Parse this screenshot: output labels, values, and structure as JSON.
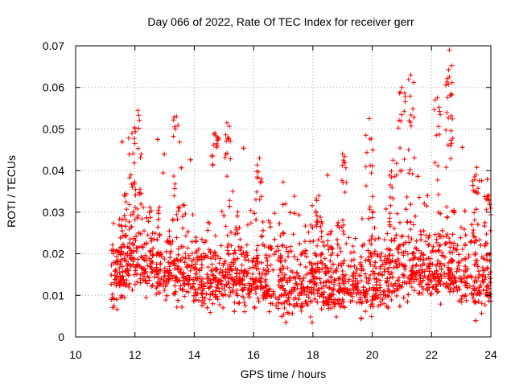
{
  "chart_data": {
    "type": "scatter",
    "title": "Day 066 of 2022, Rate Of TEC Index for receiver gerr",
    "xlabel": "GPS time / hours",
    "ylabel": "ROTI / TECUs",
    "xlim": [
      10,
      24
    ],
    "ylim": [
      0,
      0.07
    ],
    "x_ticks": [
      10,
      12,
      14,
      16,
      18,
      20,
      22,
      24
    ],
    "x_tick_labels": [
      "10",
      "12",
      "14",
      "16",
      "18",
      "20",
      "22",
      "24"
    ],
    "y_ticks": [
      0,
      0.01,
      0.02,
      0.03,
      0.04,
      0.05,
      0.06,
      0.07
    ],
    "y_tick_labels": [
      "0",
      "0.01",
      "0.02",
      "0.03",
      "0.04",
      "0.05",
      "0.06",
      "0.07"
    ],
    "grid": true,
    "marker": "+",
    "series": [
      {
        "name": "ROTI",
        "color": "#ff0000",
        "x_range": [
          11.2,
          24.0
        ],
        "baseline": [
          [
            11.2,
            0.012
          ],
          [
            11.5,
            0.016
          ],
          [
            12.0,
            0.018
          ],
          [
            12.5,
            0.017
          ],
          [
            13.0,
            0.016
          ],
          [
            13.5,
            0.016
          ],
          [
            14.0,
            0.014
          ],
          [
            14.5,
            0.014
          ],
          [
            15.0,
            0.015
          ],
          [
            15.5,
            0.014
          ],
          [
            16.0,
            0.014
          ],
          [
            16.5,
            0.013
          ],
          [
            17.0,
            0.012
          ],
          [
            17.5,
            0.012
          ],
          [
            18.0,
            0.012
          ],
          [
            18.5,
            0.012
          ],
          [
            19.0,
            0.012
          ],
          [
            19.5,
            0.012
          ],
          [
            20.0,
            0.012
          ],
          [
            20.5,
            0.013
          ],
          [
            21.0,
            0.015
          ],
          [
            21.5,
            0.016
          ],
          [
            22.0,
            0.016
          ],
          [
            22.5,
            0.016
          ],
          [
            23.0,
            0.014
          ],
          [
            23.5,
            0.013
          ],
          [
            24.0,
            0.013
          ]
        ],
        "peaks": [
          {
            "x": 11.9,
            "y": 0.049
          },
          {
            "x": 12.1,
            "y": 0.0545
          },
          {
            "x": 13.4,
            "y": 0.053
          },
          {
            "x": 14.7,
            "y": 0.049
          },
          {
            "x": 15.1,
            "y": 0.0515
          },
          {
            "x": 16.2,
            "y": 0.043
          },
          {
            "x": 18.2,
            "y": 0.034
          },
          {
            "x": 19.0,
            "y": 0.044
          },
          {
            "x": 19.9,
            "y": 0.0525
          },
          {
            "x": 20.7,
            "y": 0.0425
          },
          {
            "x": 21.0,
            "y": 0.06
          },
          {
            "x": 21.3,
            "y": 0.063
          },
          {
            "x": 22.2,
            "y": 0.0575
          },
          {
            "x": 22.6,
            "y": 0.069
          },
          {
            "x": 22.6,
            "y": 0.0625
          },
          {
            "x": 23.5,
            "y": 0.039
          },
          {
            "x": 23.9,
            "y": 0.034
          }
        ]
      }
    ]
  }
}
